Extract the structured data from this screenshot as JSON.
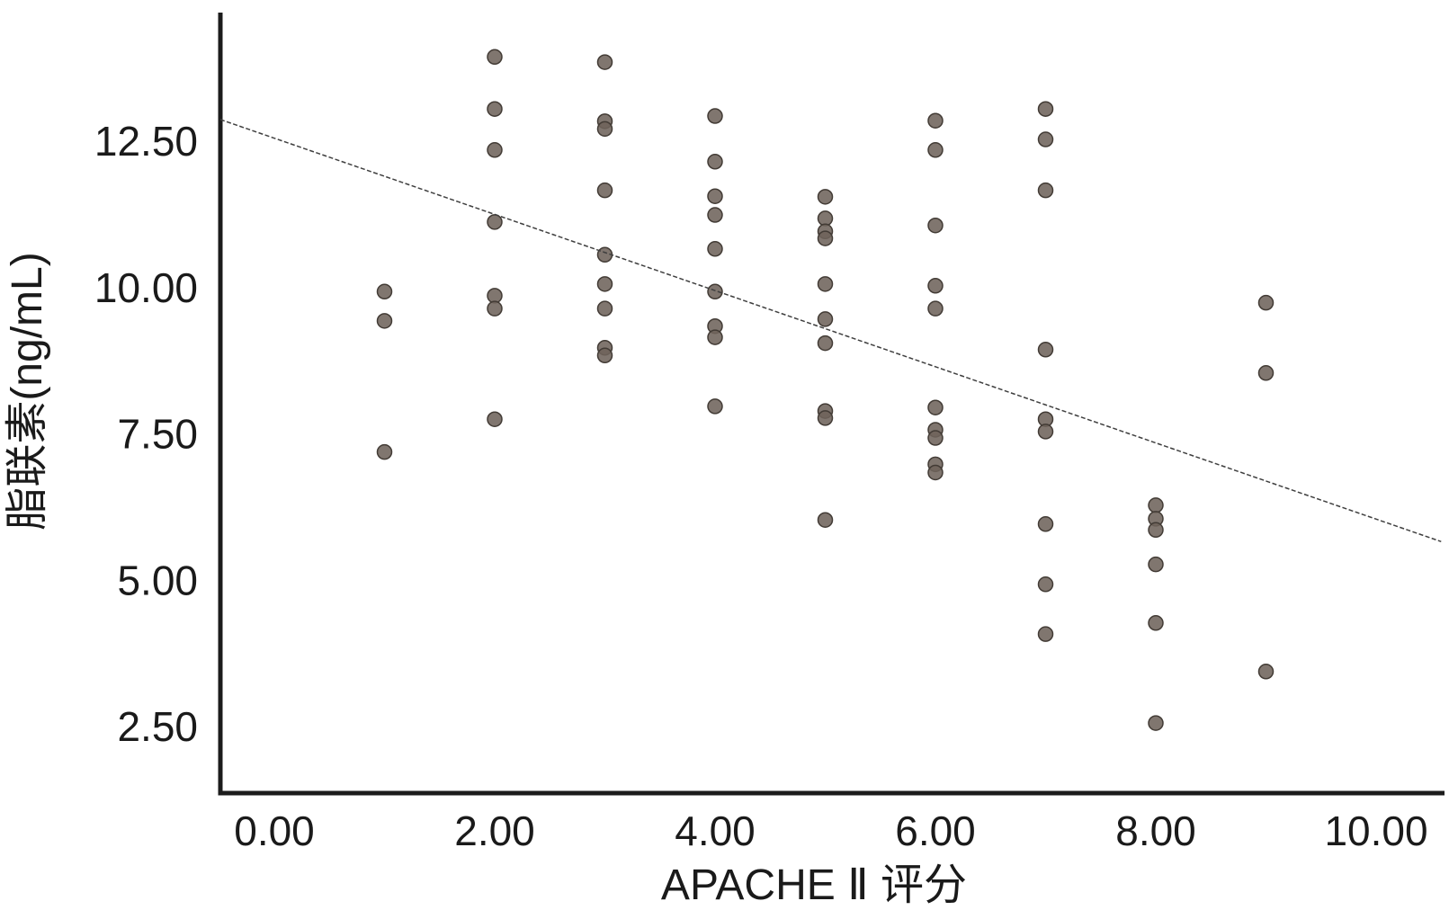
{
  "figure": {
    "background": "#ffffff",
    "text_color": "#1a1a1a",
    "axis_color": "#1c1c1c"
  },
  "chart_data": {
    "type": "scatter",
    "title": "",
    "xlabel": "APACHE Ⅱ 评分",
    "ylabel": "脂联素(ng/mL)",
    "x_ticks": [
      0,
      2,
      4,
      6,
      8,
      10
    ],
    "x_tick_labels": [
      "0.00",
      "2.00",
      "4.00",
      "6.00",
      "8.00",
      "10.00"
    ],
    "y_ticks": [
      2.5,
      5,
      7.5,
      10,
      12.5
    ],
    "y_tick_labels": [
      "2.50",
      "5.00",
      "7.50",
      "10.00",
      "12.50"
    ],
    "xlim": [
      -0.49,
      10.6
    ],
    "ylim": [
      1.36,
      14.68
    ],
    "grid": false,
    "legend": "none",
    "marker": {
      "radius": 8,
      "fill": "#6e635b",
      "stroke": "#423b35",
      "opacity": 0.88
    },
    "fit_line": {
      "x1": -0.49,
      "y1": 12.87,
      "x2": 10.59,
      "y2": 5.66,
      "color": "#3f3f3f",
      "width": 1.5,
      "dash": "5 2.5"
    },
    "points": [
      [
        1,
        9.93
      ],
      [
        1,
        9.43
      ],
      [
        1,
        7.19
      ],
      [
        2,
        13.94
      ],
      [
        2,
        13.05
      ],
      [
        2,
        12.35
      ],
      [
        2,
        11.12
      ],
      [
        2,
        9.86
      ],
      [
        2,
        9.64
      ],
      [
        2,
        7.75
      ],
      [
        3,
        13.85
      ],
      [
        3,
        12.84
      ],
      [
        3,
        12.71
      ],
      [
        3,
        11.66
      ],
      [
        3,
        10.56
      ],
      [
        3,
        10.06
      ],
      [
        3,
        9.64
      ],
      [
        3,
        8.97
      ],
      [
        3,
        8.84
      ],
      [
        4,
        12.93
      ],
      [
        4,
        12.15
      ],
      [
        4,
        11.56
      ],
      [
        4,
        11.24
      ],
      [
        4,
        10.66
      ],
      [
        4,
        9.93
      ],
      [
        4,
        9.34
      ],
      [
        4,
        9.15
      ],
      [
        4,
        7.97
      ],
      [
        5,
        11.55
      ],
      [
        5,
        11.18
      ],
      [
        5,
        10.96
      ],
      [
        5,
        10.84
      ],
      [
        5,
        10.06
      ],
      [
        5,
        9.46
      ],
      [
        5,
        9.05
      ],
      [
        5,
        7.89
      ],
      [
        5,
        7.77
      ],
      [
        5,
        6.03
      ],
      [
        6,
        12.85
      ],
      [
        6,
        12.35
      ],
      [
        6,
        11.06
      ],
      [
        6,
        10.03
      ],
      [
        6,
        9.64
      ],
      [
        6,
        7.95
      ],
      [
        6,
        7.57
      ],
      [
        6,
        7.43
      ],
      [
        6,
        6.98
      ],
      [
        6,
        6.84
      ],
      [
        7,
        13.05
      ],
      [
        7,
        12.53
      ],
      [
        7,
        11.66
      ],
      [
        7,
        8.94
      ],
      [
        7,
        7.75
      ],
      [
        7,
        7.54
      ],
      [
        7,
        5.96
      ],
      [
        7,
        4.93
      ],
      [
        7,
        4.08
      ],
      [
        8,
        6.28
      ],
      [
        8,
        6.05
      ],
      [
        8,
        5.86
      ],
      [
        8,
        5.27
      ],
      [
        8,
        4.27
      ],
      [
        8,
        2.56
      ],
      [
        9,
        9.74
      ],
      [
        9,
        8.54
      ],
      [
        9,
        3.44
      ]
    ]
  }
}
